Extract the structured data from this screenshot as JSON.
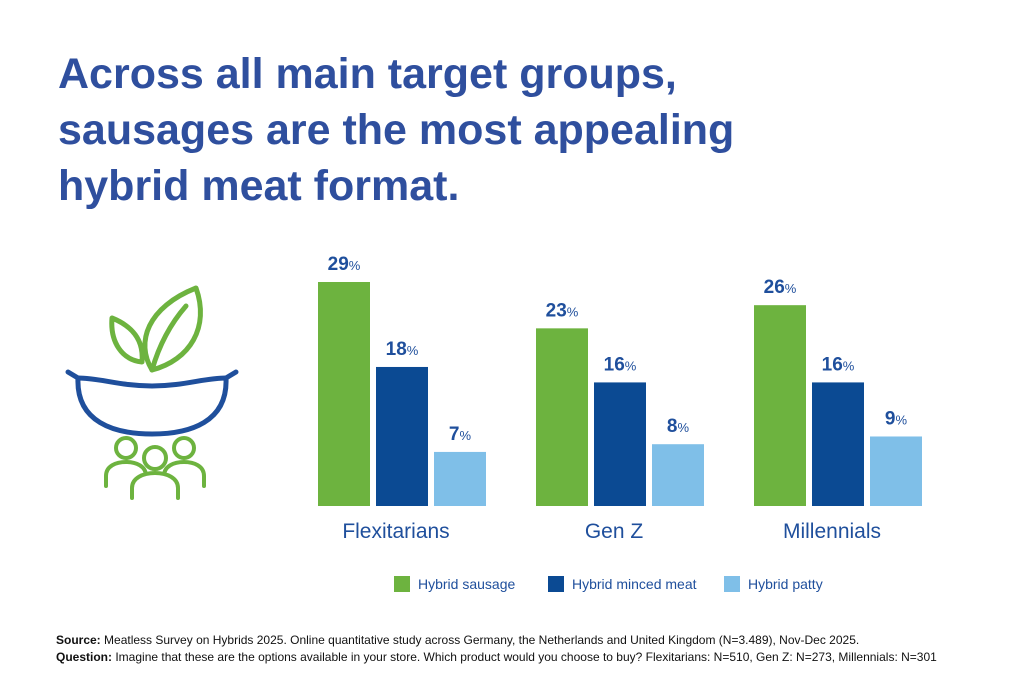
{
  "title_lines": [
    "Across all main target groups,",
    "sausages are the most appealing",
    "hybrid meat format."
  ],
  "chart_data": {
    "type": "bar",
    "categories": [
      "Flexitarians",
      "Gen Z",
      "Millennials"
    ],
    "series": [
      {
        "name": "Hybrid sausage",
        "values": [
          29,
          23,
          26
        ],
        "color": "#6db33f"
      },
      {
        "name": "Hybrid minced meat",
        "values": [
          18,
          16,
          16
        ],
        "color": "#0b4a93"
      },
      {
        "name": "Hybrid patty",
        "values": [
          7,
          8,
          9
        ],
        "color": "#7fbfe8"
      }
    ],
    "unit": "%",
    "legend_position": "bottom",
    "grid": false,
    "ylim": [
      0,
      29
    ]
  },
  "icon": {
    "name": "sausage-with-leaf-and-people-icon",
    "colors": {
      "green": "#6db33f",
      "blue": "#1f4f9c"
    }
  },
  "footer": {
    "source_label": "Source:",
    "source_text": "Meatless Survey on Hybrids 2025. Online quantitative study across Germany, the Netherlands and United Kingdom (N=3.489), Nov-Dec 2025.",
    "question_label": "Question:",
    "question_text": "Imagine that these are the options available in your store. Which product would you choose to buy? Flexitarians: N=510, Gen Z: N=273, Millennials: N=301"
  }
}
